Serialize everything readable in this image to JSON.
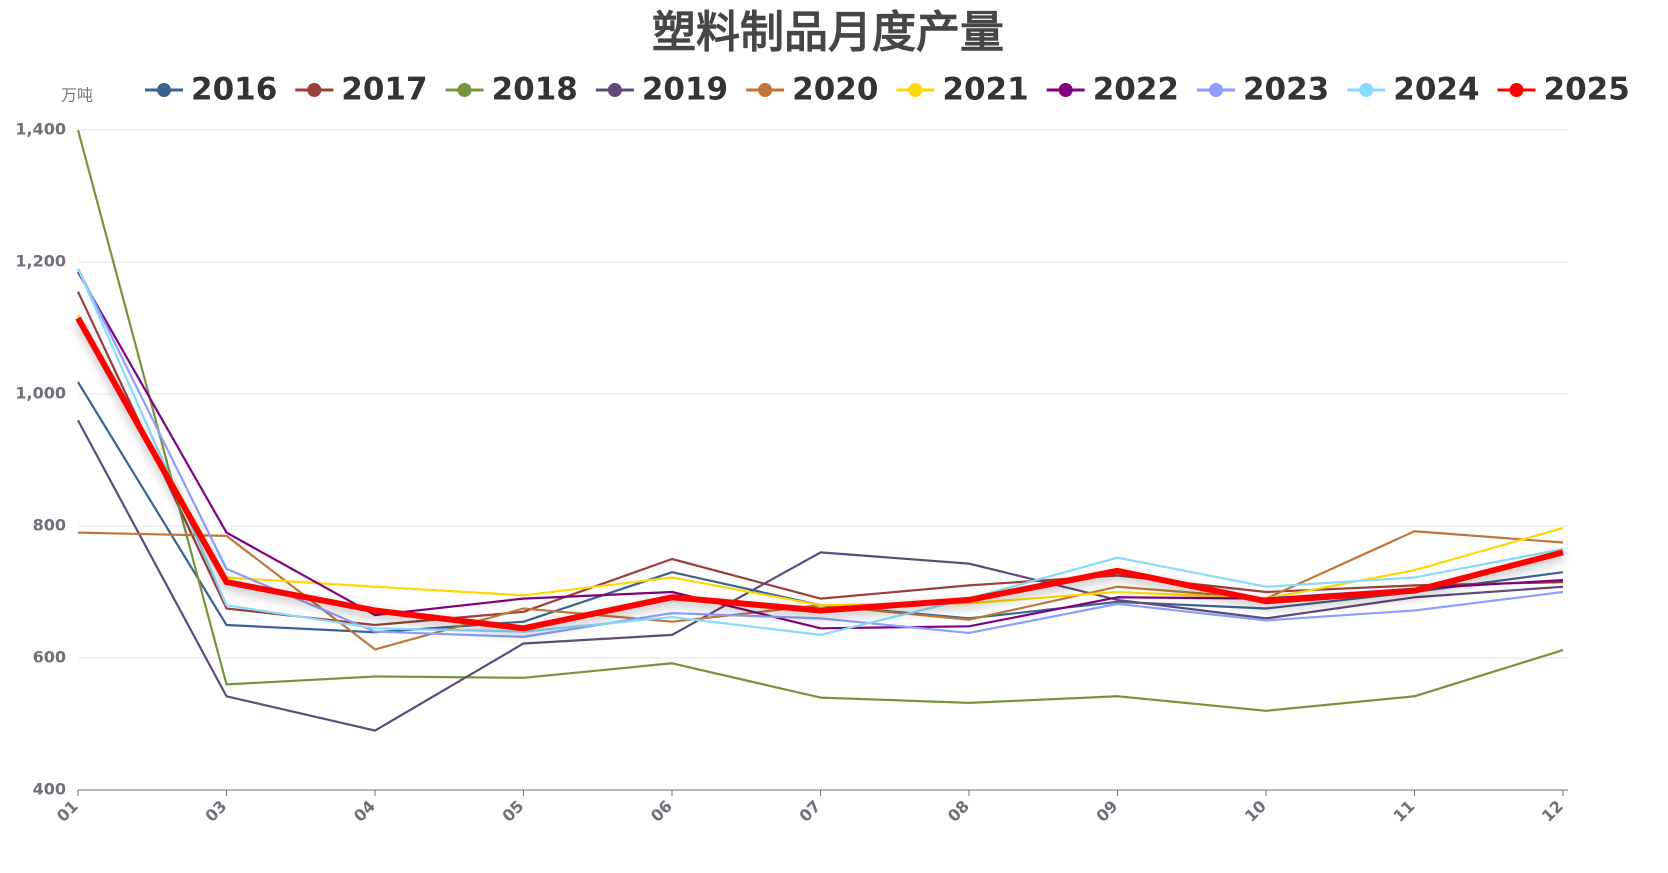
{
  "chart_data": {
    "type": "line",
    "title": "塑料制品月度产量",
    "y_unit": "万吨",
    "categories": [
      "01",
      "03",
      "04",
      "05",
      "06",
      "07",
      "08",
      "09",
      "10",
      "11",
      "12"
    ],
    "ylim": [
      400,
      1400
    ],
    "yticks": [
      400,
      600,
      800,
      {
        "value": 1000,
        "label": "1,000"
      },
      {
        "value": 1200,
        "label": "1,200"
      },
      {
        "value": 1400,
        "label": "1,400"
      }
    ],
    "grid": true,
    "legend": "top",
    "series": [
      {
        "name": "2016",
        "color": "#3a6491",
        "values": [
          1018,
          650,
          639,
          655,
          730,
          680,
          660,
          685,
          675,
          700,
          730
        ]
      },
      {
        "name": "2017",
        "color": "#9b3f3b",
        "values": [
          1155,
          675,
          650,
          670,
          750,
          690,
          710,
          725,
          700,
          710,
          715
        ]
      },
      {
        "name": "2018",
        "color": "#77933c",
        "values": [
          1400,
          560,
          572,
          570,
          592,
          540,
          532,
          542,
          520,
          542,
          612
        ]
      },
      {
        "name": "2019",
        "color": "#604a7b",
        "values": [
          960,
          542,
          490,
          622,
          635,
          760,
          743,
          688,
          660,
          692,
          708
        ]
      },
      {
        "name": "2020",
        "color": "#c0763a",
        "values": [
          790,
          785,
          613,
          675,
          655,
          680,
          658,
          708,
          690,
          792,
          775
        ]
      },
      {
        "name": "2021",
        "color": "#ffd700",
        "values": [
          1120,
          722,
          708,
          695,
          722,
          680,
          683,
          700,
          690,
          733,
          797
        ]
      },
      {
        "name": "2022",
        "color": "#800080",
        "values": [
          1185,
          790,
          665,
          690,
          700,
          645,
          648,
          692,
          690,
          705,
          718
        ]
      },
      {
        "name": "2023",
        "color": "#8c9eff",
        "values": [
          1190,
          735,
          640,
          632,
          668,
          660,
          638,
          682,
          657,
          672,
          700
        ]
      },
      {
        "name": "2024",
        "color": "#87dcfa",
        "values": [
          1190,
          680,
          645,
          640,
          662,
          635,
          690,
          752,
          708,
          722,
          765
        ]
      },
      {
        "name": "2025",
        "color": "#ff0000",
        "values": [
          1115,
          715,
          672,
          645,
          692,
          672,
          688,
          732,
          686,
          702,
          760
        ]
      }
    ]
  }
}
